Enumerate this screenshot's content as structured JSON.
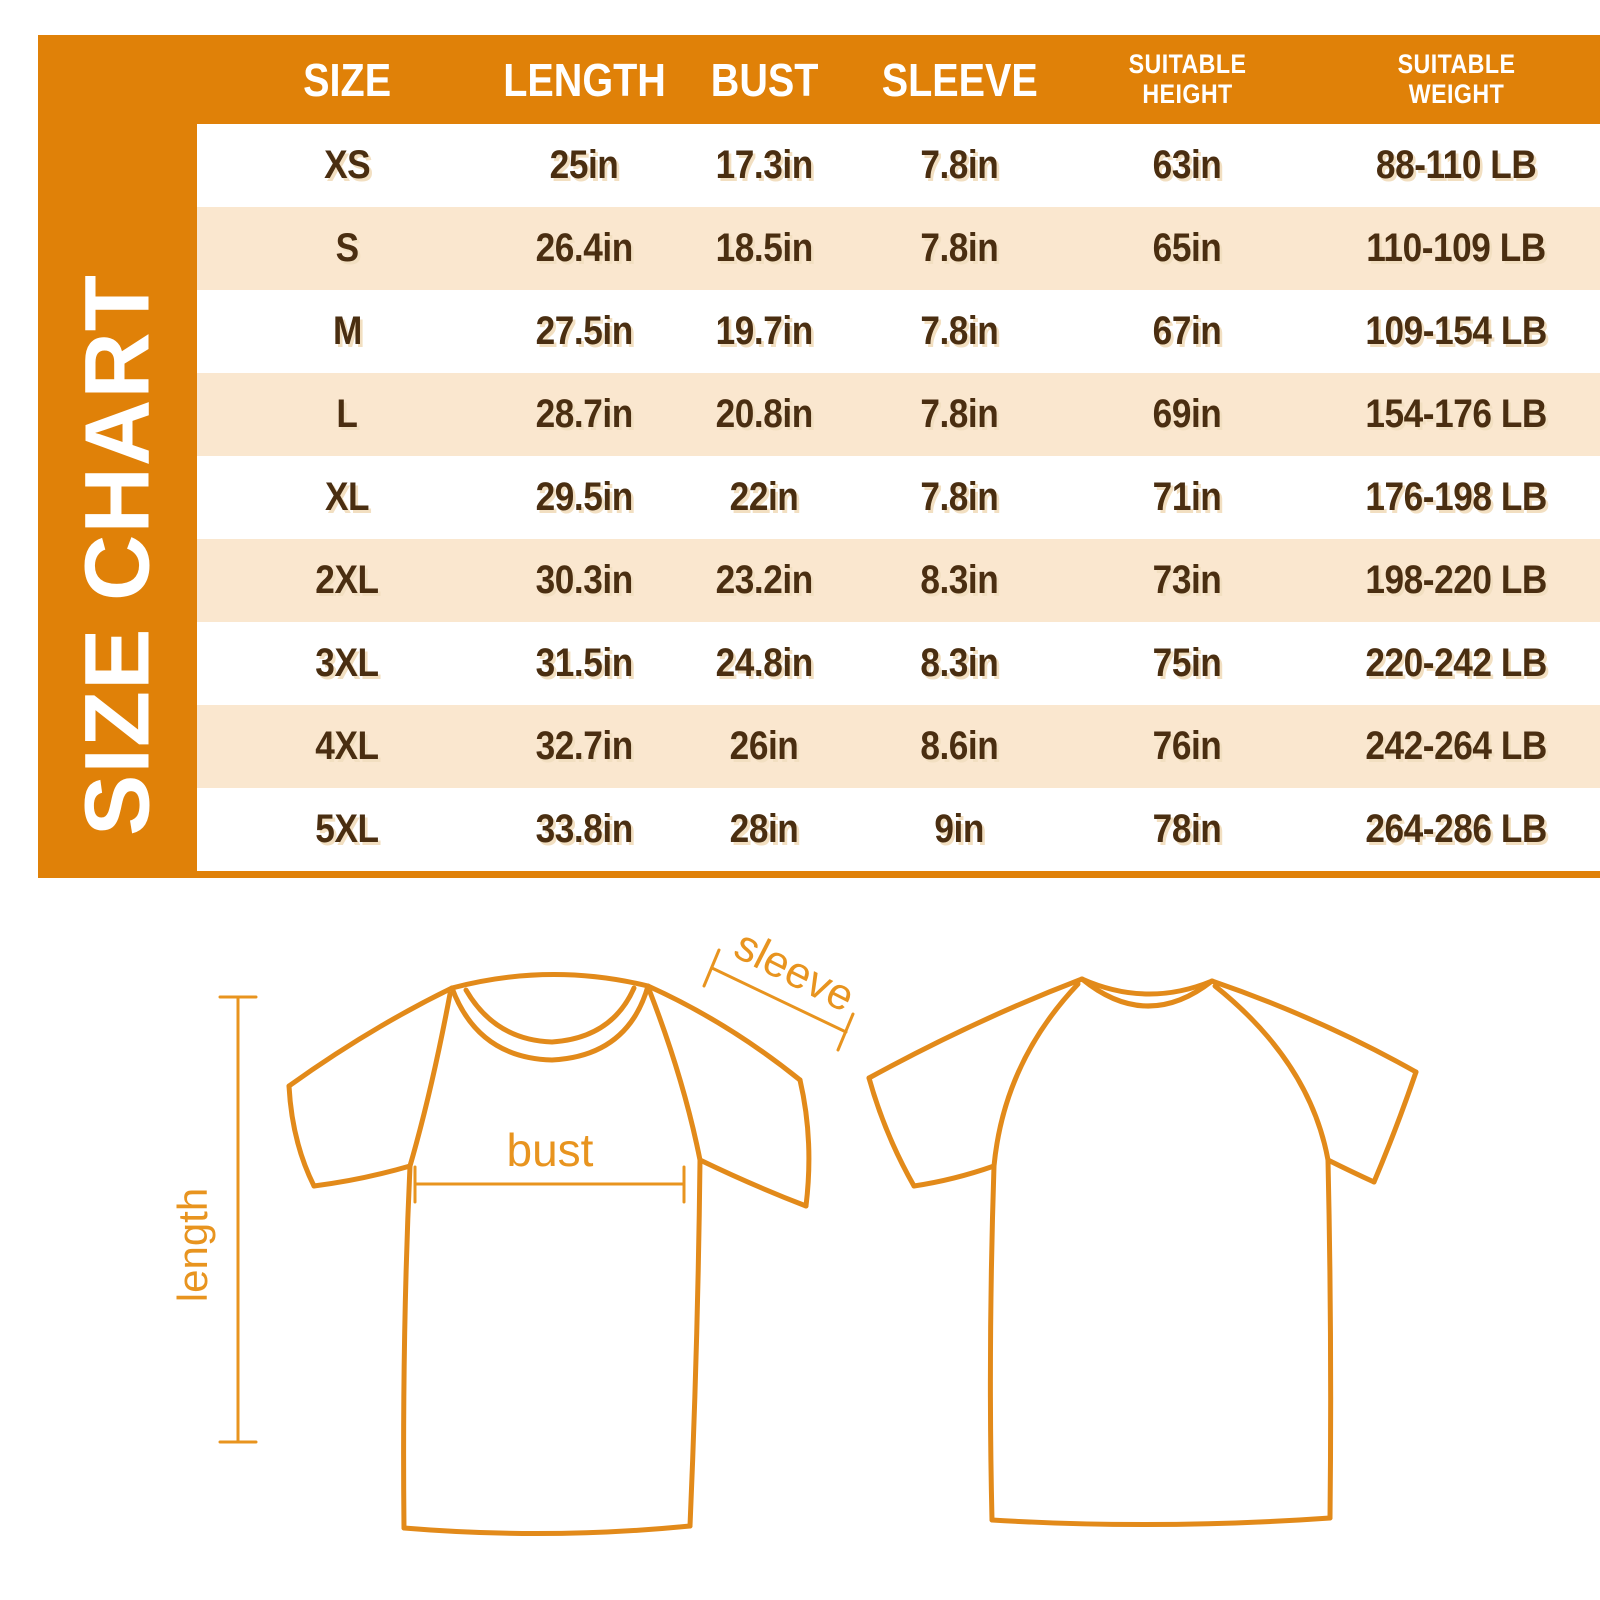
{
  "table": {
    "title": "SIZE CHART",
    "columns": [
      {
        "lines": [
          "SIZE"
        ]
      },
      {
        "lines": [
          "LENGTH"
        ]
      },
      {
        "lines": [
          "BUST"
        ]
      },
      {
        "lines": [
          "SLEEVE"
        ]
      },
      {
        "lines": [
          "SUITABLE",
          "HEIGHT"
        ]
      },
      {
        "lines": [
          "SUITABLE",
          "WEIGHT"
        ]
      }
    ],
    "rows": [
      {
        "size": "XS",
        "length": "25in",
        "bust": "17.3in",
        "sleeve": "7.8in",
        "height": "63in",
        "weight": "88-110 LB"
      },
      {
        "size": "S",
        "length": "26.4in",
        "bust": "18.5in",
        "sleeve": "7.8in",
        "height": "65in",
        "weight": "110-109 LB"
      },
      {
        "size": "M",
        "length": "27.5in",
        "bust": "19.7in",
        "sleeve": "7.8in",
        "height": "67in",
        "weight": "109-154 LB"
      },
      {
        "size": "L",
        "length": "28.7in",
        "bust": "20.8in",
        "sleeve": "7.8in",
        "height": "69in",
        "weight": "154-176 LB"
      },
      {
        "size": "XL",
        "length": "29.5in",
        "bust": "22in",
        "sleeve": "7.8in",
        "height": "71in",
        "weight": "176-198 LB"
      },
      {
        "size": "2XL",
        "length": "30.3in",
        "bust": "23.2in",
        "sleeve": "8.3in",
        "height": "73in",
        "weight": "198-220 LB"
      },
      {
        "size": "3XL",
        "length": "31.5in",
        "bust": "24.8in",
        "sleeve": "8.3in",
        "height": "75in",
        "weight": "220-242 LB"
      },
      {
        "size": "4XL",
        "length": "32.7in",
        "bust": "26in",
        "sleeve": "8.6in",
        "height": "76in",
        "weight": "242-264 LB"
      },
      {
        "size": "5XL",
        "length": "33.8in",
        "bust": "28in",
        "sleeve": "9in",
        "height": "78in",
        "weight": "264-286 LB"
      }
    ]
  },
  "diagram": {
    "labels": {
      "sleeve": "sleeve",
      "bust": "bust",
      "length": "length"
    }
  },
  "colors": {
    "orange": "#E08108",
    "peach_row": "#FAE7CF",
    "text_brown": "#4A2E11",
    "text_shadow": "#F2DFC1",
    "diagram_orange": "#E8941F",
    "white": "#FFFFFF"
  }
}
